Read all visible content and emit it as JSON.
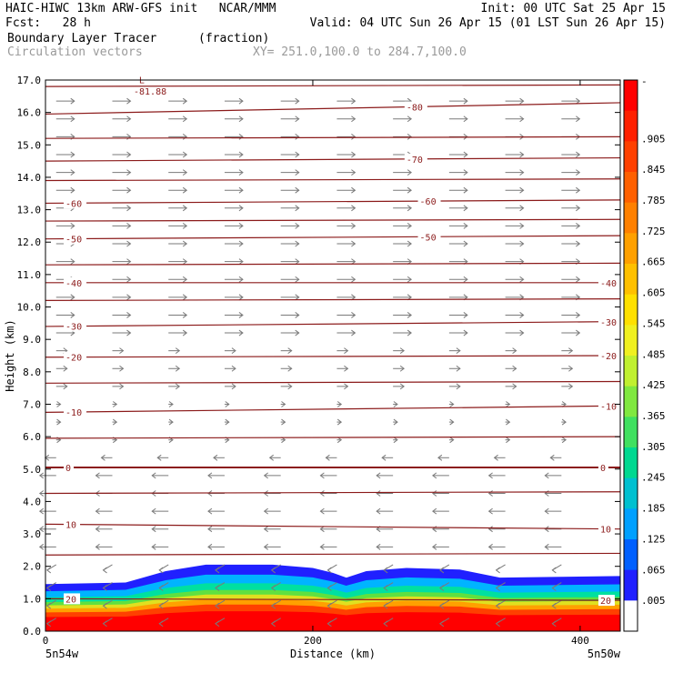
{
  "header": {
    "title_left": "HAIC-HIWC 13km ARW-GFS init   NCAR/MMM",
    "init": "Init: 00 UTC Sat 25 Apr 15",
    "fcst": "Fcst:   28 h",
    "valid": "Valid: 04 UTC Sun 26 Apr 15 (01 LST Sun 26 Apr 15)",
    "field": "Boundary Layer Tracer",
    "units": "(fraction)",
    "vectors": "Circulation vectors",
    "xy": "XY= 251.0,100.0 to 284.7,100.0"
  },
  "colors": {
    "contour": "#8b1a1a",
    "vector": "#7a7a7a",
    "fill_bands": [
      "#2020ff",
      "#00b4ff",
      "#00e0a0",
      "#60e040",
      "#e0e020",
      "#ffa000",
      "#ff4000",
      "#ff0000"
    ]
  },
  "chart_data": {
    "type": "heatmap",
    "title": "Boundary Layer Tracer",
    "units": "(fraction)",
    "xlabel": "Distance (km)",
    "ylabel": "Height (km)",
    "xlim": [
      0,
      430
    ],
    "ylim": [
      0,
      17
    ],
    "x_ticks": [
      0,
      200,
      400
    ],
    "x_tick_labels": [
      "0",
      "200",
      "400"
    ],
    "x_end_labels": [
      "5n54w",
      "5n50w"
    ],
    "y_ticks": [
      0,
      1,
      2,
      3,
      4,
      5,
      6,
      7,
      8,
      9,
      10,
      11,
      12,
      13,
      14,
      15,
      16,
      17
    ],
    "y_tick_labels": [
      "0.0",
      "1.0",
      "2.0",
      "3.0",
      "4.0",
      "5.0",
      "6.0",
      "7.0",
      "8.0",
      "9.0",
      "10.0",
      "11.0",
      "12.0",
      "13.0",
      "14.0",
      "15.0",
      "16.0",
      "17.0"
    ],
    "colorbar_labels": [
      "-",
      ".905",
      ".845",
      ".785",
      ".725",
      ".665",
      ".605",
      ".545",
      ".485",
      ".425",
      ".365",
      ".305",
      ".245",
      ".185",
      ".125",
      ".065",
      ".005"
    ],
    "colorbar_colors": [
      "#ff0000",
      "#ff2000",
      "#ff4000",
      "#ff6000",
      "#ff8000",
      "#ffa000",
      "#ffc000",
      "#ffe000",
      "#f0f020",
      "#c0f030",
      "#80e840",
      "#40e060",
      "#00d890",
      "#00c0d0",
      "#00a0ff",
      "#0060ff",
      "#2020ff",
      "#ffffff"
    ],
    "tracer_top_km": [
      {
        "x": 0,
        "y": 1.45
      },
      {
        "x": 60,
        "y": 1.5
      },
      {
        "x": 90,
        "y": 1.85
      },
      {
        "x": 120,
        "y": 2.05
      },
      {
        "x": 170,
        "y": 2.05
      },
      {
        "x": 200,
        "y": 1.95
      },
      {
        "x": 215,
        "y": 1.8
      },
      {
        "x": 225,
        "y": 1.65
      },
      {
        "x": 240,
        "y": 1.85
      },
      {
        "x": 270,
        "y": 1.95
      },
      {
        "x": 310,
        "y": 1.9
      },
      {
        "x": 340,
        "y": 1.65
      },
      {
        "x": 430,
        "y": 1.7
      }
    ],
    "contours": [
      {
        "label": "20",
        "y": [
          1.0,
          0.95
        ],
        "label_pos": [
          "left",
          "right"
        ]
      },
      {
        "label": "10",
        "y": [
          3.3,
          3.15
        ],
        "label_pos": [
          "left",
          "right"
        ]
      },
      {
        "label": "0",
        "y": [
          5.05,
          5.05
        ],
        "label_pos": [
          "left",
          "right"
        ]
      },
      {
        "label": "-10",
        "y": [
          6.75,
          6.95
        ],
        "label_pos": [
          "left",
          "right"
        ]
      },
      {
        "label": "-20",
        "y": [
          8.45,
          8.5
        ],
        "label_pos": [
          "left",
          "right"
        ]
      },
      {
        "label": "-30",
        "y": [
          9.4,
          9.55
        ],
        "label_pos": [
          "left",
          "right"
        ]
      },
      {
        "label": "-40",
        "y": [
          10.75,
          10.75
        ],
        "label_pos": [
          "left",
          "right"
        ]
      },
      {
        "label": "-50",
        "y": [
          12.1,
          12.2
        ],
        "label_pos": [
          "left",
          "mid"
        ]
      },
      {
        "label": "-60",
        "y": [
          13.2,
          13.3
        ],
        "label_pos": [
          "left",
          "mid"
        ]
      },
      {
        "label": "-70",
        "y": [
          14.5,
          14.6
        ],
        "label_pos": [
          "mid"
        ]
      },
      {
        "label": "-80",
        "y": [
          15.95,
          16.3
        ],
        "label_pos": [
          "mid"
        ]
      }
    ],
    "extra_lines_y": [
      2.35,
      4.25,
      5.95,
      7.65,
      10.2,
      11.3,
      12.65,
      13.9,
      15.2,
      16.8
    ],
    "minimum_label": "L",
    "minimum_value": "-81.88"
  }
}
